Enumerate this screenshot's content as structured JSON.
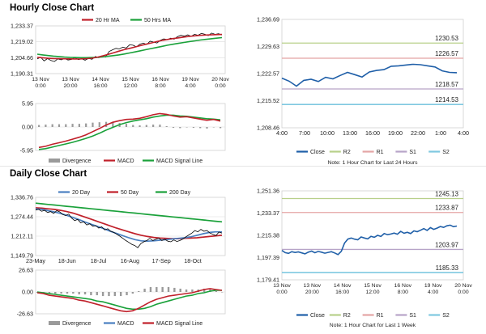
{
  "sections": {
    "hourly_title": "Hourly Close Chart",
    "daily_title": "Daily Close Chart"
  },
  "colors": {
    "price": "#000000",
    "ma_short": "#c0202a",
    "ma_long": "#1aa13a",
    "ma_mid": "#4a7fc0",
    "close": "#1f5fa8",
    "r2": "#b8d08a",
    "r1": "#e4a5a5",
    "s1": "#b7a4c8",
    "s2": "#7fc8e0",
    "divergence": "#9a9a9a"
  },
  "chart_data": [
    {
      "id": "hourly_ma",
      "type": "line",
      "legend": [
        "20 Hr MA",
        "50 Hrs MA"
      ],
      "yticks": [
        "1,233.37",
        "1,219.02",
        "1,204.66",
        "1,190.31"
      ],
      "ylim": [
        1190.31,
        1233.37
      ],
      "xticks": [
        [
          "13 Nov",
          "0:00"
        ],
        [
          "13 Nov",
          "20:00"
        ],
        [
          "14 Nov",
          "16:00"
        ],
        [
          "15 Nov",
          "12:00"
        ],
        [
          "16 Nov",
          "8:00"
        ],
        [
          "19 Nov",
          "4:00"
        ],
        [
          "20 Nov",
          "0:00"
        ]
      ],
      "series": [
        {
          "name": "Price",
          "values": [
            1203.5,
            1205.2,
            1201.8,
            1203.9,
            1202.1,
            1201.2,
            1203.6,
            1202.8,
            1203.9,
            1202.6,
            1203.1,
            1204.8,
            1202.9,
            1203.7,
            1202.4,
            1204.1,
            1203.2,
            1205.8,
            1204.6,
            1206.4,
            1205.3,
            1210.2,
            1211.8,
            1213.1,
            1212.6,
            1214.2,
            1213.4,
            1216.3,
            1215.9,
            1214.5,
            1216.9,
            1217.8,
            1216.6,
            1219.5,
            1218.8,
            1217.9,
            1220.4,
            1221.7,
            1220.9,
            1222.3,
            1221.4,
            1223.6,
            1224.8,
            1224.1,
            1225.3,
            1223.9,
            1225.8,
            1224.9,
            1226.6,
            1225.8,
            1224.6,
            1226.9,
            1225.7,
            1226.3,
            1225.1
          ]
        },
        {
          "name": "20 Hr MA",
          "values": [
            1205.0,
            1204.6,
            1204.1,
            1203.9,
            1203.8,
            1203.7,
            1203.6,
            1203.5,
            1203.6,
            1203.8,
            1204.2,
            1205.0,
            1206.2,
            1207.6,
            1209.0,
            1210.5,
            1211.9,
            1213.1,
            1214.3,
            1215.6,
            1216.8,
            1218.0,
            1219.2,
            1220.2,
            1221.1,
            1221.9,
            1222.6,
            1223.3,
            1223.9,
            1224.4,
            1224.8,
            1225.1,
            1225.3,
            1225.5,
            1225.6
          ]
        },
        {
          "name": "50 Hrs MA",
          "values": [
            1207.8,
            1207.2,
            1206.6,
            1206.1,
            1205.7,
            1205.3,
            1205.0,
            1204.8,
            1204.7,
            1204.7,
            1204.8,
            1205.0,
            1205.4,
            1205.9,
            1206.5,
            1207.2,
            1208.0,
            1208.9,
            1209.9,
            1210.9,
            1211.9,
            1212.9,
            1213.9,
            1214.9,
            1215.9,
            1216.8,
            1217.6,
            1218.4,
            1219.2,
            1219.9,
            1220.6,
            1221.2,
            1221.8,
            1222.3,
            1222.8
          ]
        }
      ]
    },
    {
      "id": "hourly_macd",
      "type": "line",
      "legend": [
        "Divergence",
        "MACD",
        "MACD Signal Line"
      ],
      "yticks": [
        "5.95",
        "0.00",
        "-5.95"
      ],
      "ylim": [
        -5.95,
        5.95
      ],
      "series": [
        {
          "name": "MACD",
          "values": [
            -5.2,
            -4.9,
            -4.4,
            -4.0,
            -3.6,
            -3.1,
            -2.6,
            -2.0,
            -1.2,
            -0.4,
            0.5,
            1.2,
            1.6,
            1.9,
            2.0,
            2.2,
            2.6,
            3.1,
            3.4,
            3.2,
            2.8,
            2.5,
            2.6,
            2.3,
            2.0,
            1.7,
            1.9,
            1.5
          ]
        },
        {
          "name": "MACD Signal Line",
          "values": [
            -5.7,
            -5.5,
            -5.1,
            -4.7,
            -4.3,
            -3.9,
            -3.4,
            -2.9,
            -2.3,
            -1.6,
            -0.8,
            -0.1,
            0.6,
            1.1,
            1.5,
            1.8,
            2.1,
            2.5,
            2.8,
            3.0,
            3.0,
            2.8,
            2.7,
            2.5,
            2.3,
            2.1,
            2.0,
            1.8
          ]
        },
        {
          "name": "Divergence",
          "values": [
            0.5,
            0.6,
            0.7,
            0.7,
            0.7,
            0.8,
            0.8,
            0.9,
            1.1,
            1.2,
            1.3,
            1.3,
            1.0,
            0.8,
            0.5,
            0.4,
            0.5,
            0.6,
            0.6,
            0.2,
            -0.2,
            -0.3,
            -0.1,
            -0.2,
            -0.3,
            -0.4,
            -0.1,
            -0.3
          ]
        }
      ]
    },
    {
      "id": "hourly_levels",
      "type": "line",
      "yticks": [
        "1,236.69",
        "1,229.63",
        "1,222.57",
        "1,215.52",
        "1,208.46"
      ],
      "ylim": [
        1208.46,
        1236.69
      ],
      "xticks": [
        "4:00",
        "7:00",
        "10:00",
        "13:00",
        "16:00",
        "19:00",
        "22:00",
        "1:00",
        "4:00"
      ],
      "levels": [
        {
          "name": "R2",
          "value": 1230.53,
          "label": "1230.53"
        },
        {
          "name": "R1",
          "value": 1226.57,
          "label": "1226.57"
        },
        {
          "name": "S1",
          "value": 1218.57,
          "label": "1218.57"
        },
        {
          "name": "S2",
          "value": 1214.53,
          "label": "1214.53"
        }
      ],
      "series": [
        {
          "name": "Close",
          "values": [
            1221.4,
            1220.6,
            1219.3,
            1220.8,
            1221.1,
            1220.5,
            1221.6,
            1221.2,
            1222.1,
            1222.9,
            1222.3,
            1221.7,
            1223.0,
            1223.4,
            1223.6,
            1224.5,
            1224.6,
            1224.8,
            1225.0,
            1224.9,
            1224.6,
            1224.3,
            1223.3,
            1222.9,
            1222.8
          ]
        }
      ],
      "legend": [
        "Close",
        "R2",
        "R1",
        "S1",
        "S2"
      ],
      "note": "Note: 1 Hour Chart for Last 24 Hours"
    },
    {
      "id": "daily_ma",
      "type": "line",
      "legend": [
        "20 Day",
        "50 Day",
        "200 Day"
      ],
      "yticks": [
        "1,336.76",
        "1,274.44",
        "1,212.11",
        "1,149.79"
      ],
      "ylim": [
        1149.79,
        1336.76
      ],
      "xticks": [
        "23-May",
        "18-Jun",
        "18-Jul",
        "16-Aug",
        "17-Sep",
        "18-Oct"
      ],
      "series": [
        {
          "name": "Price",
          "values": [
            1296,
            1298,
            1292,
            1295,
            1288,
            1291,
            1285,
            1294,
            1290,
            1282,
            1278,
            1283,
            1270,
            1262,
            1266,
            1255,
            1258,
            1248,
            1252,
            1244,
            1246,
            1238,
            1242,
            1232,
            1236,
            1228,
            1224,
            1218,
            1212,
            1205,
            1198,
            1192,
            1186,
            1182,
            1175,
            1188,
            1194,
            1198,
            1205,
            1198,
            1202,
            1206,
            1198,
            1202,
            1196,
            1194,
            1200,
            1195,
            1198,
            1203,
            1210,
            1216,
            1222,
            1230,
            1226,
            1234,
            1228,
            1230,
            1222,
            1218,
            1214,
            1225,
            1222
          ]
        },
        {
          "name": "20 Day",
          "values": [
            1300,
            1298,
            1294,
            1290,
            1285,
            1279,
            1272,
            1265,
            1257,
            1250,
            1243,
            1236,
            1228,
            1221,
            1214,
            1207,
            1201,
            1197,
            1196,
            1197,
            1199,
            1201,
            1203,
            1205,
            1207,
            1210,
            1215,
            1220,
            1224,
            1226,
            1226
          ]
        },
        {
          "name": "50 Day",
          "values": [
            1303,
            1302,
            1300,
            1298,
            1295,
            1291,
            1286,
            1280,
            1273,
            1266,
            1259,
            1252,
            1245,
            1238,
            1232,
            1226,
            1220,
            1215,
            1211,
            1208,
            1206,
            1205,
            1204,
            1204,
            1205,
            1206,
            1207,
            1209,
            1211,
            1213,
            1215
          ]
        },
        {
          "name": "200 Day",
          "values": [
            1318,
            1316,
            1314,
            1312,
            1310,
            1308,
            1306,
            1304,
            1302,
            1300,
            1298,
            1296,
            1294,
            1292,
            1290,
            1288,
            1286,
            1284,
            1282,
            1280,
            1278,
            1276,
            1274,
            1272,
            1270,
            1268,
            1266,
            1264,
            1262,
            1260,
            1258
          ]
        }
      ]
    },
    {
      "id": "daily_macd",
      "type": "line",
      "legend": [
        "Divergence",
        "MACD",
        "MACD Signal Line"
      ],
      "yticks": [
        "26.63",
        "0.00",
        "-26.63"
      ],
      "ylim": [
        -26.63,
        26.63
      ],
      "series": [
        {
          "name": "MACD",
          "values": [
            -1,
            -2,
            -4,
            -5,
            -6,
            -7,
            -8,
            -10,
            -11,
            -13,
            -15,
            -17,
            -19,
            -21,
            -23,
            -24,
            -23,
            -20,
            -16,
            -12,
            -9,
            -7,
            -5,
            -4,
            -3,
            -2,
            -1,
            1,
            3,
            4,
            3,
            2
          ]
        },
        {
          "name": "MACD Signal Line",
          "values": [
            0,
            -1,
            -2,
            -3,
            -4,
            -5,
            -6,
            -7,
            -8,
            -9,
            -11,
            -12,
            -14,
            -16,
            -18,
            -20,
            -21,
            -21,
            -20,
            -18,
            -15,
            -13,
            -11,
            -9,
            -7,
            -5,
            -4,
            -2,
            -1,
            1,
            2,
            2
          ]
        },
        {
          "name": "Divergence",
          "values": [
            -1,
            -1,
            -2,
            -2,
            -2,
            -2,
            -2,
            -3,
            -3,
            -4,
            -4,
            -5,
            -5,
            -5,
            -5,
            -4,
            -2,
            1,
            4,
            6,
            6,
            6,
            6,
            5,
            4,
            3,
            3,
            3,
            4,
            3,
            1,
            0
          ]
        }
      ]
    },
    {
      "id": "daily_levels",
      "type": "line",
      "yticks": [
        "1,251.36",
        "1,233.37",
        "1,215.38",
        "1,197.39",
        "1,179.41"
      ],
      "ylim": [
        1179.41,
        1251.36
      ],
      "xticks": [
        [
          "13 Nov",
          "0:00"
        ],
        [
          "13 Nov",
          "20:00"
        ],
        [
          "14 Nov",
          "16:00"
        ],
        [
          "15 Nov",
          "12:00"
        ],
        [
          "16 Nov",
          "8:00"
        ],
        [
          "19 Nov",
          "4:00"
        ],
        [
          "20 Nov",
          "0:00"
        ]
      ],
      "levels": [
        {
          "name": "R2",
          "value": 1245.13,
          "label": "1245.13"
        },
        {
          "name": "R1",
          "value": 1233.87,
          "label": "1233.87"
        },
        {
          "name": "S1",
          "value": 1203.97,
          "label": "1203.97"
        },
        {
          "name": "S2",
          "value": 1185.33,
          "label": "1185.33"
        }
      ],
      "series": [
        {
          "name": "Close",
          "values": [
            1203.2,
            1201.4,
            1200.8,
            1202.2,
            1201.5,
            1202.0,
            1201.2,
            1200.4,
            1201.8,
            1202.6,
            1201.3,
            1202.4,
            1201.8,
            1200.9,
            1201.6,
            1202.2,
            1201.1,
            1199.8,
            1202.5,
            1209.2,
            1212.4,
            1213.2,
            1212.3,
            1211.8,
            1214.1,
            1213.2,
            1212.5,
            1214.6,
            1213.8,
            1215.4,
            1214.5,
            1216.8,
            1215.9,
            1216.4,
            1217.2,
            1216.3,
            1218.6,
            1217.1,
            1217.9,
            1216.8,
            1219.0,
            1218.3,
            1219.5,
            1220.8,
            1219.4,
            1221.6,
            1220.2,
            1221.2,
            1222.5,
            1221.8,
            1223.1,
            1223.6,
            1222.4,
            1222.9
          ]
        }
      ],
      "legend": [
        "Close",
        "R2",
        "R1",
        "S1",
        "S2"
      ],
      "note": "Note: 1 Hour Chart for Last 1 Week"
    }
  ]
}
